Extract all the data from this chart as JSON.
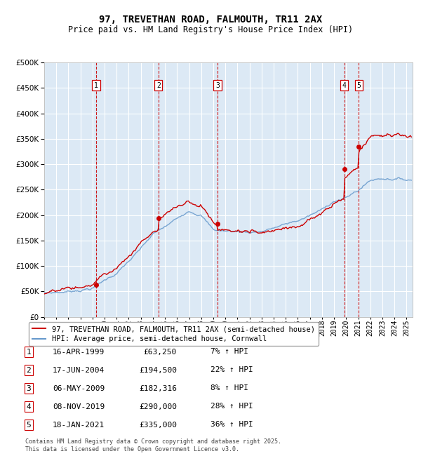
{
  "title": "97, TREVETHAN ROAD, FALMOUTH, TR11 2AX",
  "subtitle": "Price paid vs. HM Land Registry's House Price Index (HPI)",
  "ylim": [
    0,
    500000
  ],
  "yticks": [
    0,
    50000,
    100000,
    150000,
    200000,
    250000,
    300000,
    350000,
    400000,
    450000,
    500000
  ],
  "xlim_start": 1995.0,
  "xlim_end": 2025.5,
  "plot_bg_color": "#dce9f5",
  "grid_color": "#ffffff",
  "legend_label_red": "97, TREVETHAN ROAD, FALMOUTH, TR11 2AX (semi-detached house)",
  "legend_label_blue": "HPI: Average price, semi-detached house, Cornwall",
  "footer": "Contains HM Land Registry data © Crown copyright and database right 2025.\nThis data is licensed under the Open Government Licence v3.0.",
  "transaction_labels": [
    "1",
    "2",
    "3",
    "4",
    "5"
  ],
  "transaction_dates_x": [
    1999.29,
    2004.46,
    2009.35,
    2019.85,
    2021.05
  ],
  "transaction_dates_label": [
    "16-APR-1999",
    "17-JUN-2004",
    "06-MAY-2009",
    "08-NOV-2019",
    "18-JAN-2021"
  ],
  "transaction_prices": [
    63250,
    194500,
    182316,
    290000,
    335000
  ],
  "transaction_hpi": [
    "7% ↑ HPI",
    "22% ↑ HPI",
    "8% ↑ HPI",
    "28% ↑ HPI",
    "36% ↑ HPI"
  ],
  "red_color": "#cc0000",
  "blue_color": "#6699cc",
  "title_fontsize": 10,
  "subtitle_fontsize": 8.5,
  "tick_fontsize": 7.5,
  "legend_fontsize": 7.5,
  "table_fontsize": 8,
  "footer_fontsize": 6
}
